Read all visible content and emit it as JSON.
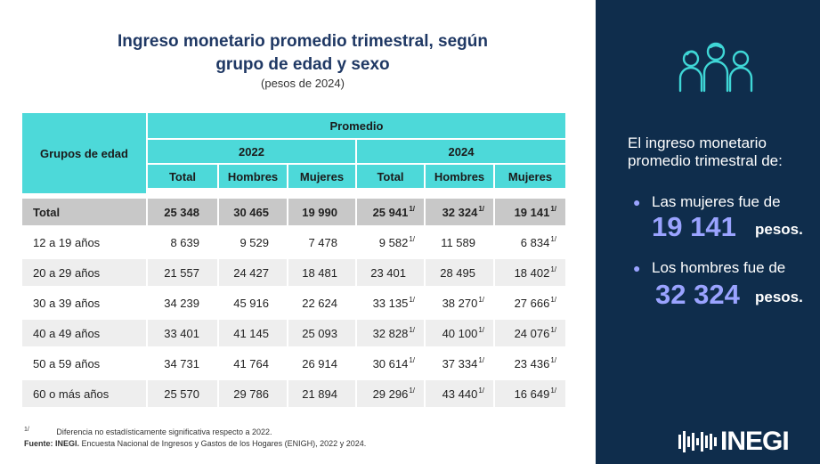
{
  "title": {
    "line1": "Ingreso monetario promedio trimestral, según",
    "line2": "grupo de edad y sexo",
    "subtitle": "(pesos de 2024)"
  },
  "table": {
    "row_header": "Grupos de edad",
    "group_header": "Promedio",
    "years": [
      "2022",
      "2024"
    ],
    "sub_headers": [
      "Total",
      "Hombres",
      "Mujeres",
      "Total",
      "Hombres",
      "Mujeres"
    ],
    "footnote_mark": "1/",
    "rows": [
      {
        "label": "Total",
        "values": [
          "25 348",
          "30 465",
          "19 990",
          "25 941",
          "32 324",
          "19 141"
        ],
        "flags": [
          "",
          "",
          "",
          "1/",
          "1/",
          "1/"
        ]
      },
      {
        "label": "12 a 19 años",
        "values": [
          "8 639",
          "9 529",
          "7 478",
          "9 582",
          "11 589",
          "6 834"
        ],
        "flags": [
          "",
          "",
          "",
          "1/",
          "",
          "1/"
        ]
      },
      {
        "label": "20 a 29 años",
        "values": [
          "21 557",
          "24 427",
          "18 481",
          "23 401",
          "28 495",
          "18 402"
        ],
        "flags": [
          "",
          "",
          "",
          "",
          "",
          "1/"
        ]
      },
      {
        "label": "30 a 39 años",
        "values": [
          "34 239",
          "45 916",
          "22 624",
          "33 135",
          "38 270",
          "27 666"
        ],
        "flags": [
          "",
          "",
          "",
          "1/",
          "1/",
          "1/"
        ]
      },
      {
        "label": "40 a 49 años",
        "values": [
          "33 401",
          "41 145",
          "25 093",
          "32 828",
          "40 100",
          "24 076"
        ],
        "flags": [
          "",
          "",
          "",
          "1/",
          "1/",
          "1/"
        ]
      },
      {
        "label": "50 a 59 años",
        "values": [
          "34 731",
          "41 764",
          "26 914",
          "30 614",
          "37 334",
          "23 436"
        ],
        "flags": [
          "",
          "",
          "",
          "1/",
          "1/",
          "1/"
        ]
      },
      {
        "label": "60 o más años",
        "values": [
          "25 570",
          "29 786",
          "21 894",
          "29 296",
          "43 440",
          "16 649"
        ],
        "flags": [
          "",
          "",
          "",
          "1/",
          "1/",
          "1/"
        ]
      }
    ]
  },
  "notes": {
    "mark": "1/",
    "text": "Diferencia no estadísticamente significativa respecto a 2022.",
    "source_label": "Fuente:",
    "source_org": "INEGI.",
    "source_text": "Encuesta Nacional de Ingresos y Gastos de los Hogares (ENIGH), 2022 y 2024."
  },
  "side": {
    "icon": "people-group-icon",
    "intro_line1": "El ingreso monetario",
    "intro_line2": "promedio trimestral de:",
    "women_text": "Las mujeres fue de",
    "women_value": "19 141",
    "men_text": "Los hombres fue de",
    "men_value": "32 324",
    "unit": "pesos.",
    "logo": "INEGI"
  },
  "colors": {
    "header_cyan": "#4dd9d9",
    "side_navy": "#0f2d4c",
    "highlight_violet": "#9aa3ff",
    "total_row_gray": "#c8c8c8",
    "alt_row_gray": "#eeeeee"
  }
}
